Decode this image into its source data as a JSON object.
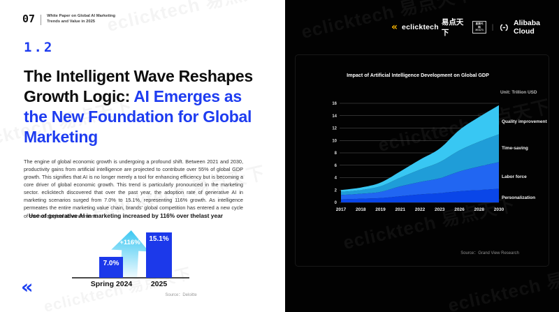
{
  "page": {
    "page_number": "07",
    "header_caption_line1": "White Paper on Global AI Marketing",
    "header_caption_line2": "Trends and Value in 2025",
    "section_number": "1.2",
    "title_lines": [
      {
        "black": "The Intelligent Wave Reshapes",
        "blue": ""
      },
      {
        "black": "Growth Logic: ",
        "blue": "AI Emerges as"
      },
      {
        "black": "",
        "blue": "the New Foundation for Global"
      },
      {
        "black": "",
        "blue": "Marketing"
      }
    ],
    "body": "The engine of global economic growth is undergoing a profound shift. Between 2021 and 2030, productivity gains from artificial intelligence are projected to contribute over 55% of global GDP growth. This signifies that AI is no longer merely a tool for enhancing efficiency but is becoming a core driver of global economic growth. This trend is particularly pronounced in the marketing sector. eclicktech discovered that over the past year, the adoption rate of generative AI in marketing scenarios surged from 7.0% to 15.1%, representing 116% growth. As intelligence permeates the entire marketing value chain, brands' global competition has entered a new cycle of methodological advancement.",
    "source_left": "Source：Deloitte",
    "footer_mark_glyph": "«"
  },
  "brand": {
    "eclicktech_swoosh": "«",
    "eclicktech_name": "eclicktech",
    "eclicktech_cn": "易点天下",
    "stock_badge_line1": "股票代码",
    "stock_badge_line2": "301171",
    "divider": "|",
    "alibaba_label": "Alibaba Cloud",
    "watermark": "eclicktech 易点天下"
  },
  "right": {
    "unit_label": "Unit: Trillion USD",
    "source_right": "Source：Grand View Research",
    "legend": [
      "Quality improvement",
      "Time-saving",
      "Labor force",
      "Personalization"
    ]
  },
  "chart_data": [
    {
      "type": "bar",
      "title": "Use of generative AI in marketing increased by 116% over thelast year",
      "categories": [
        "Spring 2024",
        "2025"
      ],
      "values": [
        7.0,
        15.1
      ],
      "value_labels": [
        "7.0%",
        "15.1%"
      ],
      "annotation": "+116%",
      "bar_color": "#1c39ea",
      "arrow_color_top": "#3cc7f1",
      "arrow_color_bottom": "#eefaff",
      "source": "Source：Deloitte",
      "ylabel": "",
      "xlabel": ""
    },
    {
      "type": "area",
      "title": "Impact of Artificial Intelligence Development on Global GDP",
      "unit": "Unit: Trillion USD",
      "x": [
        2017,
        2018,
        2019,
        2021,
        2022,
        2023,
        2026,
        2028,
        2030
      ],
      "ylim": [
        0,
        16
      ],
      "yticks": [
        0,
        2,
        4,
        6,
        8,
        10,
        12,
        14,
        16
      ],
      "grid": true,
      "legend_position": "right",
      "series": [
        {
          "name": "Personalization",
          "color": "#0a46e8",
          "values": [
            0.5,
            0.6,
            0.7,
            1.0,
            1.3,
            1.5,
            1.8,
            2.0,
            2.2
          ]
        },
        {
          "name": "Labor force",
          "color": "#2166f2",
          "values": [
            0.7,
            0.8,
            1.0,
            1.6,
            2.0,
            2.4,
            3.2,
            3.8,
            4.3
          ]
        },
        {
          "name": "Time-saving",
          "color": "#1f9dd8",
          "values": [
            0.5,
            0.6,
            0.9,
            1.4,
            2.0,
            2.6,
            3.4,
            4.0,
            4.5
          ]
        },
        {
          "name": "Quality improvement",
          "color": "#38c7f3",
          "values": [
            0.3,
            0.4,
            0.6,
            1.0,
            1.6,
            2.2,
            3.3,
            4.0,
            4.7
          ]
        }
      ],
      "totals": [
        2.0,
        2.4,
        3.2,
        5.0,
        6.9,
        8.7,
        11.7,
        13.8,
        15.7
      ],
      "source": "Source：Grand View Research"
    }
  ]
}
